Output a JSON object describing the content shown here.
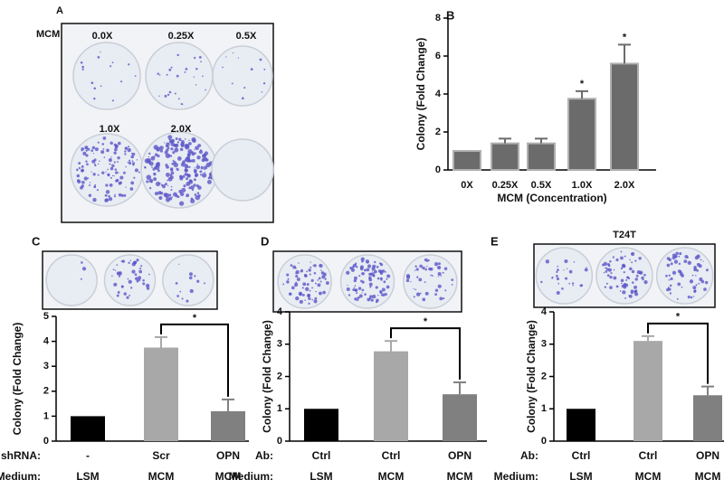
{
  "panel_a": {
    "panel_label": "A",
    "row_label": "MCM",
    "well_labels": [
      "0.0X",
      "0.25X",
      "0.5X",
      "1.0X",
      "2.0X"
    ]
  },
  "chart_data": [
    {
      "type": "bar",
      "panel_label": "B",
      "categories": [
        "0X",
        "0.25X",
        "0.5X",
        "1.0X",
        "2.0X"
      ],
      "values": [
        1,
        1.4,
        1.4,
        3.75,
        5.6
      ],
      "errors": [
        0,
        0.25,
        0.25,
        0.4,
        1.0
      ],
      "value_annotations": [
        null,
        null,
        null,
        "*",
        "*"
      ],
      "color": "#6b6b6b",
      "ylabel": "Colony (Fold Change)",
      "xlabel": "MCM (Concentration)",
      "ylim": [
        0,
        8
      ],
      "yticks": [
        0,
        2,
        4,
        6,
        8
      ]
    },
    {
      "type": "bar",
      "panel_label": "C",
      "category_rows": [
        {
          "name": "shRNA:",
          "values": [
            "-",
            "Scr",
            "OPN"
          ]
        },
        {
          "name": "Medium:",
          "values": [
            "LSM",
            "MCM",
            "MCM"
          ]
        }
      ],
      "values": [
        1,
        3.75,
        1.2
      ],
      "errors": [
        0,
        0.42,
        0.47
      ],
      "colors": [
        "#000000",
        "#a8a8a8",
        "#808080"
      ],
      "significance": {
        "label": "*"
      },
      "ylabel": "Colony (Fold Change)",
      "ylim": [
        0,
        5
      ],
      "yticks": [
        0,
        1,
        2,
        3,
        4,
        5
      ]
    },
    {
      "type": "bar",
      "panel_label": "D",
      "category_rows": [
        {
          "name": "Ab:",
          "values": [
            "Ctrl",
            "Ctrl",
            "OPN"
          ]
        },
        {
          "name": "Medium:",
          "values": [
            "LSM",
            "MCM",
            "MCM"
          ]
        }
      ],
      "values": [
        1,
        2.78,
        1.45
      ],
      "errors": [
        0,
        0.32,
        0.37
      ],
      "colors": [
        "#000000",
        "#a8a8a8",
        "#808080"
      ],
      "significance": {
        "label": "*"
      },
      "ylabel": "Colony (Fold Change)",
      "ylim": [
        0,
        4
      ],
      "yticks": [
        0,
        1,
        2,
        3,
        4
      ]
    },
    {
      "type": "bar",
      "panel_label": "E",
      "title": "T24T",
      "category_rows": [
        {
          "name": "Ab:",
          "values": [
            "Ctrl",
            "Ctrl",
            "OPN"
          ]
        },
        {
          "name": "Medium:",
          "values": [
            "LSM",
            "MCM",
            "MCM"
          ]
        }
      ],
      "values": [
        1,
        3.1,
        1.42
      ],
      "errors": [
        0,
        0.15,
        0.27
      ],
      "colors": [
        "#000000",
        "#a8a8a8",
        "#808080"
      ],
      "significance": {
        "label": "*"
      },
      "ylabel": "Colony (Fold Change)",
      "ylim": [
        0,
        4
      ],
      "yticks": [
        0,
        1,
        2,
        3,
        4
      ]
    }
  ]
}
